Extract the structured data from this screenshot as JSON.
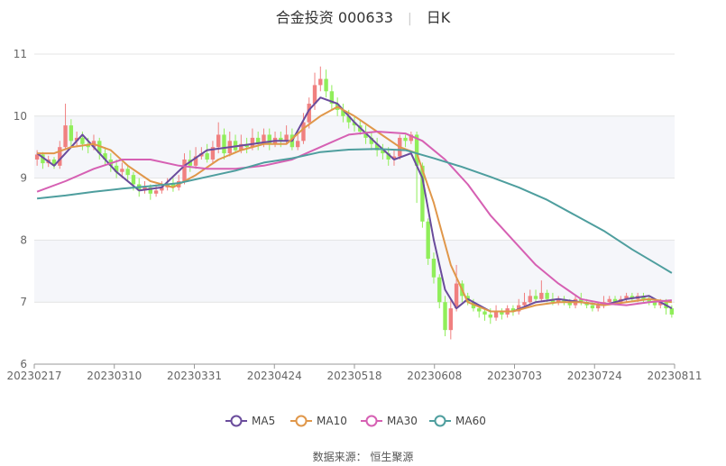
{
  "title": {
    "main": "合金投资 000633",
    "period": "日K"
  },
  "source": {
    "label": "数据来源：",
    "value": "恒生聚源"
  },
  "chart_data": {
    "type": "candlestick",
    "ylim": [
      6,
      11
    ],
    "y_ticks": [
      "6",
      "7",
      "8",
      "9",
      "10",
      "11"
    ],
    "x_tick_labels": [
      "20230217",
      "20230310",
      "20230331",
      "20230424",
      "20230518",
      "20230608",
      "20230703",
      "20230724",
      "20230811"
    ],
    "colors": {
      "up": "#f08080",
      "down": "#90ee5a",
      "MA5": "#6a4c9c",
      "MA10": "#e0974a",
      "MA30": "#d660b3",
      "MA60": "#4e9e9e"
    },
    "candles": [
      [
        9.3,
        9.38,
        9.45,
        9.2
      ],
      [
        9.38,
        9.24,
        9.42,
        9.15
      ],
      [
        9.24,
        9.3,
        9.36,
        9.18
      ],
      [
        9.3,
        9.2,
        9.34,
        9.15
      ],
      [
        9.2,
        9.5,
        9.6,
        9.15
      ],
      [
        9.5,
        9.85,
        10.2,
        9.45
      ],
      [
        9.85,
        9.6,
        9.95,
        9.5
      ],
      [
        9.6,
        9.65,
        9.75,
        9.5
      ],
      [
        9.65,
        9.55,
        9.75,
        9.45
      ],
      [
        9.55,
        9.5,
        9.65,
        9.4
      ],
      [
        9.5,
        9.6,
        9.7,
        9.45
      ],
      [
        9.6,
        9.4,
        9.65,
        9.3
      ],
      [
        9.4,
        9.3,
        9.5,
        9.2
      ],
      [
        9.3,
        9.2,
        9.4,
        9.1
      ],
      [
        9.2,
        9.1,
        9.3,
        9.0
      ],
      [
        9.1,
        9.15,
        9.25,
        9.0
      ],
      [
        9.15,
        9.05,
        9.2,
        8.95
      ],
      [
        9.05,
        8.9,
        9.1,
        8.8
      ],
      [
        8.9,
        8.8,
        9.0,
        8.7
      ],
      [
        8.8,
        8.85,
        8.95,
        8.75
      ],
      [
        8.85,
        8.75,
        8.9,
        8.65
      ],
      [
        8.75,
        8.8,
        8.9,
        8.7
      ],
      [
        8.8,
        8.85,
        8.95,
        8.75
      ],
      [
        8.85,
        8.9,
        9.0,
        8.8
      ],
      [
        8.9,
        8.85,
        9.0,
        8.78
      ],
      [
        8.85,
        8.95,
        9.05,
        8.8
      ],
      [
        8.95,
        9.3,
        9.4,
        8.9
      ],
      [
        9.3,
        9.2,
        9.45,
        9.1
      ],
      [
        9.2,
        9.35,
        9.5,
        9.15
      ],
      [
        9.35,
        9.4,
        9.5,
        9.3
      ],
      [
        9.4,
        9.3,
        9.55,
        9.25
      ],
      [
        9.3,
        9.5,
        9.6,
        9.25
      ],
      [
        9.5,
        9.7,
        9.9,
        9.4
      ],
      [
        9.7,
        9.4,
        9.8,
        9.3
      ],
      [
        9.4,
        9.6,
        9.75,
        9.35
      ],
      [
        9.6,
        9.45,
        9.7,
        9.4
      ],
      [
        9.45,
        9.55,
        9.7,
        9.4
      ],
      [
        9.55,
        9.5,
        9.65,
        9.4
      ],
      [
        9.5,
        9.65,
        9.8,
        9.45
      ],
      [
        9.65,
        9.55,
        9.75,
        9.45
      ],
      [
        9.55,
        9.7,
        9.8,
        9.5
      ],
      [
        9.7,
        9.55,
        9.8,
        9.45
      ],
      [
        9.55,
        9.65,
        9.75,
        9.5
      ],
      [
        9.65,
        9.6,
        9.75,
        9.5
      ],
      [
        9.6,
        9.7,
        9.85,
        9.55
      ],
      [
        9.7,
        9.5,
        9.8,
        9.45
      ],
      [
        9.5,
        9.6,
        9.75,
        9.45
      ],
      [
        9.6,
        9.9,
        10.05,
        9.55
      ],
      [
        9.9,
        10.2,
        10.3,
        9.8
      ],
      [
        10.2,
        10.5,
        10.7,
        10.1
      ],
      [
        10.5,
        10.6,
        10.8,
        10.4
      ],
      [
        10.6,
        10.4,
        10.75,
        10.3
      ],
      [
        10.4,
        10.2,
        10.5,
        10.1
      ],
      [
        10.2,
        10.1,
        10.3,
        10.0
      ],
      [
        10.1,
        10.0,
        10.2,
        9.9
      ],
      [
        10.0,
        9.9,
        10.1,
        9.8
      ],
      [
        9.9,
        9.85,
        10.0,
        9.75
      ],
      [
        9.85,
        9.75,
        9.95,
        9.7
      ],
      [
        9.75,
        9.65,
        9.85,
        9.55
      ],
      [
        9.65,
        9.55,
        9.75,
        9.45
      ],
      [
        9.55,
        9.45,
        9.65,
        9.35
      ],
      [
        9.45,
        9.4,
        9.55,
        9.3
      ],
      [
        9.4,
        9.3,
        9.5,
        9.2
      ],
      [
        9.3,
        9.35,
        9.45,
        9.2
      ],
      [
        9.35,
        9.65,
        9.7,
        9.3
      ],
      [
        9.65,
        9.6,
        9.7,
        9.5
      ],
      [
        9.6,
        9.7,
        9.75,
        9.55
      ],
      [
        9.7,
        9.2,
        9.75,
        8.6
      ],
      [
        9.2,
        8.3,
        9.25,
        8.2
      ],
      [
        8.3,
        7.7,
        8.35,
        7.6
      ],
      [
        7.7,
        7.4,
        7.8,
        7.3
      ],
      [
        7.4,
        7.0,
        7.45,
        6.9
      ],
      [
        7.0,
        6.55,
        7.1,
        6.45
      ],
      [
        6.55,
        6.9,
        7.05,
        6.4
      ],
      [
        6.9,
        7.3,
        7.6,
        6.85
      ],
      [
        7.3,
        7.1,
        7.35,
        7.0
      ],
      [
        7.1,
        7.0,
        7.15,
        6.95
      ],
      [
        7.0,
        6.9,
        7.05,
        6.85
      ],
      [
        6.9,
        6.85,
        6.95,
        6.75
      ],
      [
        6.85,
        6.8,
        6.9,
        6.7
      ],
      [
        6.8,
        6.75,
        6.9,
        6.65
      ],
      [
        6.75,
        6.85,
        6.95,
        6.7
      ],
      [
        6.85,
        6.8,
        6.9,
        6.72
      ],
      [
        6.8,
        6.9,
        6.95,
        6.75
      ],
      [
        6.9,
        6.85,
        6.95,
        6.78
      ],
      [
        6.85,
        6.95,
        7.05,
        6.8
      ],
      [
        6.95,
        7.0,
        7.15,
        6.9
      ],
      [
        7.0,
        7.1,
        7.2,
        6.95
      ],
      [
        7.1,
        7.05,
        7.2,
        7.0
      ],
      [
        7.05,
        7.15,
        7.35,
        7.0
      ],
      [
        7.15,
        7.05,
        7.2,
        7.0
      ],
      [
        7.05,
        7.0,
        7.15,
        6.95
      ],
      [
        7.0,
        7.05,
        7.1,
        6.95
      ],
      [
        7.05,
        7.0,
        7.1,
        6.95
      ],
      [
        7.0,
        6.95,
        7.05,
        6.9
      ],
      [
        6.95,
        7.05,
        7.1,
        6.9
      ],
      [
        7.05,
        7.0,
        7.15,
        6.95
      ],
      [
        7.0,
        6.95,
        7.05,
        6.9
      ],
      [
        6.95,
        6.9,
        7.0,
        6.85
      ],
      [
        6.9,
        6.95,
        7.0,
        6.85
      ],
      [
        6.95,
        7.0,
        7.1,
        6.9
      ],
      [
        7.0,
        7.05,
        7.1,
        6.95
      ],
      [
        7.05,
        7.0,
        7.1,
        6.95
      ],
      [
        7.0,
        7.05,
        7.1,
        6.95
      ],
      [
        7.05,
        7.1,
        7.15,
        7.0
      ],
      [
        7.1,
        7.05,
        7.15,
        7.0
      ],
      [
        7.05,
        7.1,
        7.15,
        7.0
      ],
      [
        7.1,
        7.05,
        7.15,
        7.0
      ],
      [
        7.05,
        7.0,
        7.1,
        6.95
      ],
      [
        7.0,
        6.95,
        7.05,
        6.9
      ],
      [
        6.95,
        7.0,
        7.05,
        6.9
      ],
      [
        7.0,
        6.9,
        7.05,
        6.8
      ],
      [
        6.9,
        6.8,
        6.95,
        6.75
      ]
    ],
    "series": [
      {
        "name": "MA5",
        "points": [
          [
            0,
            9.4
          ],
          [
            3,
            9.2
          ],
          [
            5,
            9.4
          ],
          [
            8,
            9.7
          ],
          [
            11,
            9.4
          ],
          [
            14,
            9.1
          ],
          [
            18,
            8.8
          ],
          [
            22,
            8.85
          ],
          [
            26,
            9.2
          ],
          [
            30,
            9.45
          ],
          [
            34,
            9.5
          ],
          [
            38,
            9.55
          ],
          [
            42,
            9.6
          ],
          [
            45,
            9.6
          ],
          [
            48,
            10.1
          ],
          [
            50,
            10.3
          ],
          [
            53,
            10.2
          ],
          [
            56,
            9.9
          ],
          [
            60,
            9.55
          ],
          [
            63,
            9.3
          ],
          [
            66,
            9.4
          ],
          [
            68,
            9.0
          ],
          [
            70,
            8.0
          ],
          [
            72,
            7.2
          ],
          [
            74,
            6.9
          ],
          [
            76,
            7.05
          ],
          [
            80,
            6.85
          ],
          [
            84,
            6.85
          ],
          [
            88,
            7.0
          ],
          [
            92,
            7.05
          ],
          [
            96,
            7.0
          ],
          [
            100,
            6.95
          ],
          [
            104,
            7.05
          ],
          [
            108,
            7.1
          ],
          [
            112,
            6.9
          ]
        ]
      },
      {
        "name": "MA10",
        "points": [
          [
            0,
            9.4
          ],
          [
            3,
            9.4
          ],
          [
            6,
            9.5
          ],
          [
            10,
            9.55
          ],
          [
            13,
            9.45
          ],
          [
            16,
            9.2
          ],
          [
            20,
            8.95
          ],
          [
            24,
            8.85
          ],
          [
            28,
            9.05
          ],
          [
            32,
            9.3
          ],
          [
            36,
            9.45
          ],
          [
            40,
            9.55
          ],
          [
            44,
            9.55
          ],
          [
            47,
            9.8
          ],
          [
            50,
            10.0
          ],
          [
            53,
            10.15
          ],
          [
            56,
            10.0
          ],
          [
            60,
            9.75
          ],
          [
            64,
            9.5
          ],
          [
            67,
            9.4
          ],
          [
            70,
            8.6
          ],
          [
            73,
            7.6
          ],
          [
            76,
            7.0
          ],
          [
            80,
            6.85
          ],
          [
            84,
            6.85
          ],
          [
            88,
            6.95
          ],
          [
            92,
            7.0
          ],
          [
            96,
            7.0
          ],
          [
            100,
            6.95
          ],
          [
            104,
            7.0
          ],
          [
            108,
            7.05
          ],
          [
            112,
            7.0
          ]
        ]
      },
      {
        "name": "MA30",
        "points": [
          [
            0,
            8.78
          ],
          [
            5,
            8.95
          ],
          [
            10,
            9.15
          ],
          [
            15,
            9.3
          ],
          [
            20,
            9.3
          ],
          [
            25,
            9.2
          ],
          [
            30,
            9.15
          ],
          [
            35,
            9.15
          ],
          [
            40,
            9.2
          ],
          [
            45,
            9.3
          ],
          [
            50,
            9.5
          ],
          [
            55,
            9.7
          ],
          [
            60,
            9.75
          ],
          [
            65,
            9.72
          ],
          [
            68,
            9.6
          ],
          [
            72,
            9.3
          ],
          [
            76,
            8.9
          ],
          [
            80,
            8.4
          ],
          [
            84,
            8.0
          ],
          [
            88,
            7.6
          ],
          [
            92,
            7.3
          ],
          [
            96,
            7.05
          ],
          [
            100,
            6.98
          ],
          [
            104,
            6.95
          ],
          [
            108,
            7.0
          ],
          [
            112,
            7.03
          ]
        ]
      },
      {
        "name": "MA60",
        "points": [
          [
            0,
            8.67
          ],
          [
            5,
            8.72
          ],
          [
            10,
            8.78
          ],
          [
            15,
            8.83
          ],
          [
            20,
            8.87
          ],
          [
            25,
            8.92
          ],
          [
            30,
            9.02
          ],
          [
            35,
            9.12
          ],
          [
            40,
            9.25
          ],
          [
            45,
            9.32
          ],
          [
            50,
            9.42
          ],
          [
            55,
            9.46
          ],
          [
            60,
            9.47
          ],
          [
            65,
            9.45
          ],
          [
            70,
            9.32
          ],
          [
            75,
            9.18
          ],
          [
            80,
            9.02
          ],
          [
            85,
            8.85
          ],
          [
            90,
            8.65
          ],
          [
            95,
            8.4
          ],
          [
            100,
            8.15
          ],
          [
            105,
            7.85
          ],
          [
            110,
            7.58
          ],
          [
            112,
            7.47
          ]
        ]
      }
    ]
  }
}
